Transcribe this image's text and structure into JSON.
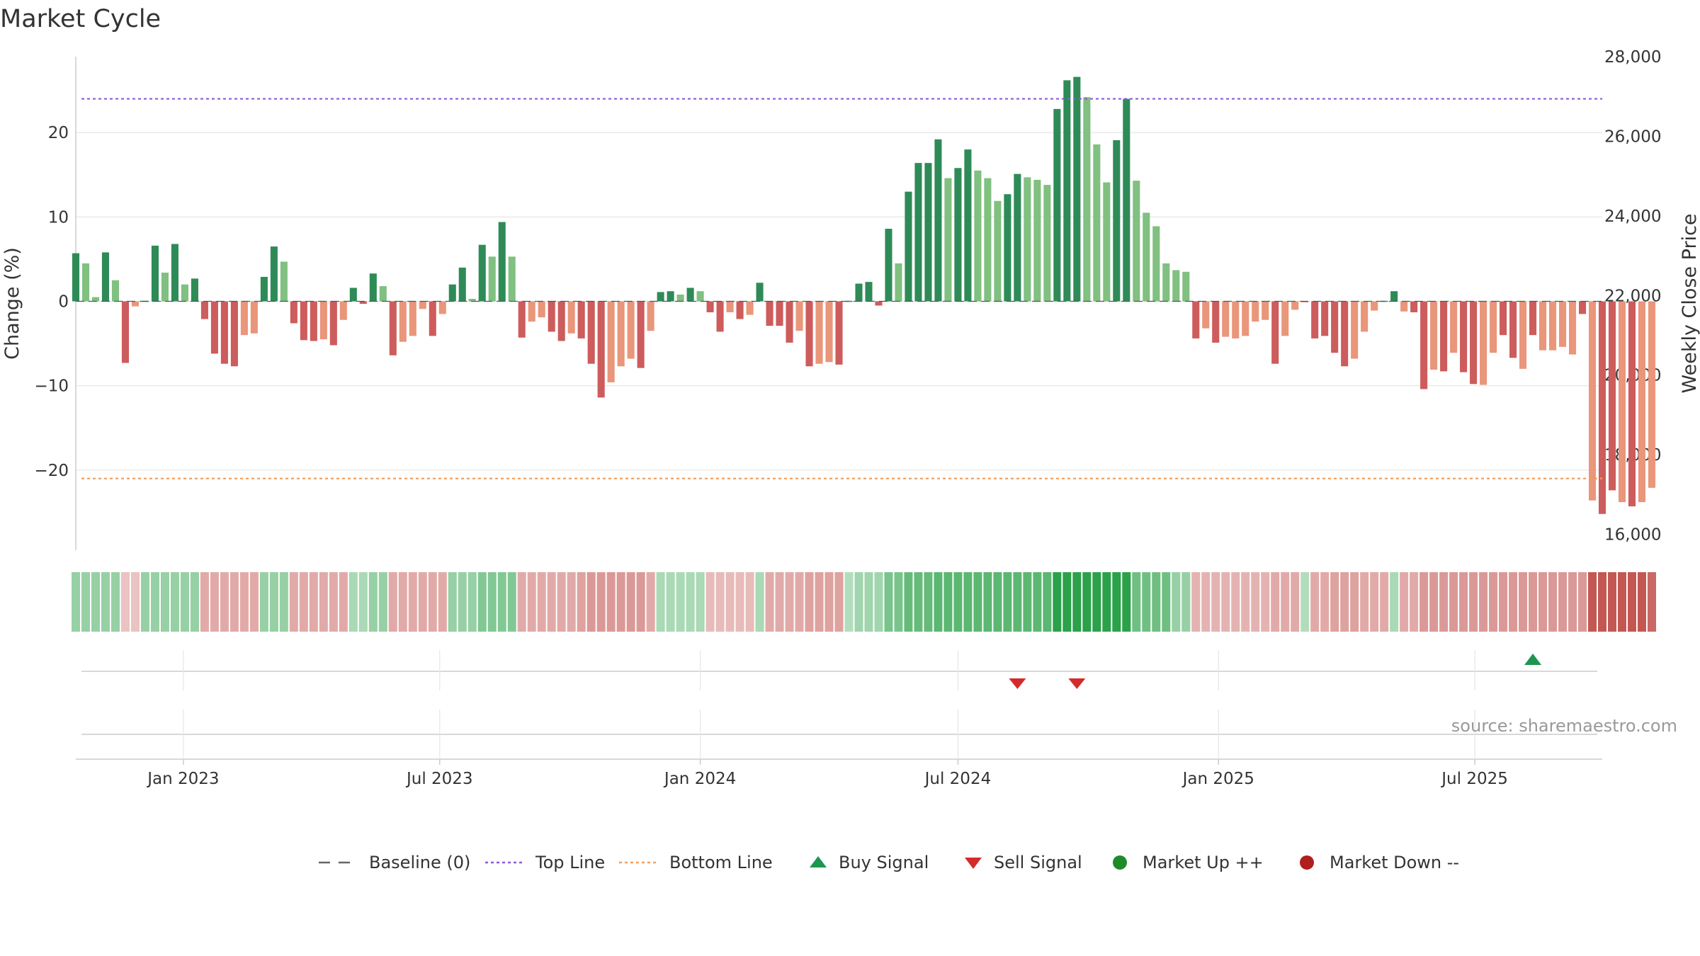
{
  "chart_data": {
    "type": "bar",
    "title": "Market Cycle",
    "ylabel": "Change (%)",
    "y2label": "Weekly Close Price",
    "ylim": [
      -29.5,
      29
    ],
    "yticks": [
      -20,
      -10,
      0,
      10,
      20
    ],
    "yticklabels": [
      "−20",
      "−10",
      "0",
      "10",
      "20"
    ],
    "y2lim": [
      15600,
      28000
    ],
    "y2ticks": [
      16000,
      18000,
      20000,
      22000,
      24000,
      26000,
      28000
    ],
    "y2ticklabels": [
      "16,000",
      "18,000",
      "20,000",
      "22,000",
      "24,000",
      "26,000",
      "28,000"
    ],
    "x_start": "2022-10-17",
    "x_end": "2025-09-29",
    "xticks": [
      "2023-01-01",
      "2023-07-01",
      "2024-01-01",
      "2024-07-01",
      "2025-01-01",
      "2025-07-01"
    ],
    "xticklabels": [
      "Jan 2023",
      "Jul 2023",
      "Jan 2024",
      "Jul 2024",
      "Jan 2025",
      "Jul 2025"
    ],
    "first_week": "2022-10-17",
    "values": [
      5.7,
      4.5,
      0.5,
      5.8,
      2.5,
      -7.3,
      -0.6,
      0,
      6.6,
      3.4,
      6.8,
      2.0,
      2.7,
      -2.1,
      -6.2,
      -7.4,
      -7.7,
      -4.0,
      -3.8,
      2.9,
      6.5,
      4.7,
      -2.6,
      -4.6,
      -4.7,
      -4.5,
      -5.2,
      -2.2,
      1.6,
      -0.3,
      3.3,
      1.8,
      -6.4,
      -4.8,
      -4.1,
      -0.9,
      -4.1,
      -1.5,
      2.0,
      4.0,
      0.3,
      6.7,
      5.3,
      9.4,
      5.3,
      -4.3,
      -2.4,
      -1.9,
      -3.6,
      -4.7,
      -3.8,
      -4.4,
      -7.4,
      -11.4,
      -9.6,
      -7.7,
      -6.8,
      -7.9,
      -3.5,
      1.1,
      1.2,
      0.8,
      1.6,
      1.2,
      -1.3,
      -3.6,
      -1.3,
      -2.1,
      -1.6,
      2.2,
      -2.9,
      -2.9,
      -4.9,
      -3.5,
      -7.7,
      -7.4,
      -7.2,
      -7.5,
      0,
      2.1,
      2.3,
      -0.5,
      8.6,
      4.5,
      13.0,
      16.4,
      16.4,
      19.2,
      14.6,
      15.8,
      18.0,
      15.5,
      14.6,
      11.9,
      12.7,
      15.1,
      14.7,
      14.4,
      13.8,
      22.8,
      26.2,
      26.6,
      24.2,
      18.6,
      14.1,
      19.1,
      24.0,
      14.3,
      10.5,
      8.9,
      4.5,
      3.7,
      3.5,
      -4.4,
      -3.2,
      -4.9,
      -4.2,
      -4.4,
      -4.1,
      -2.4,
      -2.2,
      -7.4,
      -4.1,
      -1.0,
      -0.1,
      -4.4,
      -4.1,
      -6.1,
      -7.7,
      -6.8,
      -3.6,
      -1.1,
      0,
      1.2,
      -1.2,
      -1.3,
      -10.4,
      -8.1,
      -8.3,
      -6.1,
      -8.4,
      -9.8,
      -9.9,
      -6.1,
      -4.0,
      -6.7,
      -8.0,
      -4.0,
      -5.8,
      -5.8,
      -5.4,
      -6.3,
      -1.5,
      -23.6,
      -25.2,
      -22.4,
      -23.8,
      -24.3,
      -23.8,
      -22.1
    ],
    "color_levels": [
      2,
      1,
      1,
      2,
      1,
      2,
      1,
      2,
      2,
      1,
      2,
      1,
      2,
      2,
      2,
      2,
      2,
      1,
      1,
      2,
      2,
      1,
      2,
      2,
      2,
      1,
      2,
      1,
      2,
      2,
      2,
      1,
      2,
      1,
      1,
      1,
      2,
      1,
      2,
      2,
      1,
      2,
      1,
      2,
      1,
      2,
      1,
      1,
      2,
      2,
      1,
      2,
      2,
      2,
      1,
      1,
      1,
      2,
      1,
      2,
      2,
      1,
      2,
      1,
      2,
      2,
      1,
      2,
      1,
      2,
      2,
      2,
      2,
      1,
      2,
      1,
      1,
      2,
      2,
      2,
      2,
      2,
      2,
      1,
      2,
      2,
      2,
      2,
      1,
      2,
      2,
      1,
      1,
      1,
      2,
      2,
      1,
      1,
      1,
      2,
      2,
      2,
      1,
      1,
      1,
      2,
      2,
      1,
      1,
      1,
      1,
      1,
      1,
      2,
      1,
      2,
      1,
      1,
      1,
      1,
      1,
      2,
      1,
      1,
      1,
      2,
      2,
      2,
      2,
      1,
      1,
      1,
      2,
      2,
      1,
      2,
      2,
      1,
      2,
      1,
      2,
      2,
      1,
      1,
      2,
      2,
      1,
      2,
      1,
      1,
      1,
      1,
      2,
      1,
      2,
      2,
      1,
      2,
      1,
      1,
      1
    ],
    "heat_levels": [
      0.3,
      0.3,
      0.3,
      0.3,
      0.3,
      -0.15,
      -0.15,
      0.3,
      0.3,
      0.3,
      0.3,
      0.3,
      0.3,
      -0.3,
      -0.3,
      -0.3,
      -0.3,
      -0.3,
      -0.3,
      0.3,
      0.3,
      0.3,
      -0.3,
      -0.3,
      -0.3,
      -0.3,
      -0.3,
      -0.3,
      0.2,
      0.2,
      0.3,
      0.3,
      -0.3,
      -0.3,
      -0.3,
      -0.3,
      -0.3,
      -0.3,
      0.3,
      0.3,
      0.3,
      0.4,
      0.4,
      0.4,
      0.4,
      -0.3,
      -0.3,
      -0.3,
      -0.3,
      -0.3,
      -0.3,
      -0.35,
      -0.4,
      -0.4,
      -0.4,
      -0.4,
      -0.4,
      -0.4,
      -0.3,
      0.2,
      0.2,
      0.2,
      0.2,
      0.2,
      -0.2,
      -0.2,
      -0.2,
      -0.2,
      -0.2,
      0.2,
      -0.3,
      -0.3,
      -0.3,
      -0.3,
      -0.35,
      -0.35,
      -0.35,
      -0.35,
      0.15,
      0.25,
      0.25,
      0.25,
      0.45,
      0.45,
      0.55,
      0.55,
      0.55,
      0.6,
      0.6,
      0.6,
      0.6,
      0.6,
      0.6,
      0.6,
      0.6,
      0.6,
      0.6,
      0.6,
      0.6,
      0.85,
      0.85,
      0.85,
      0.85,
      0.85,
      0.85,
      0.85,
      0.85,
      0.5,
      0.5,
      0.5,
      0.5,
      0.3,
      0.3,
      -0.25,
      -0.25,
      -0.25,
      -0.25,
      -0.25,
      -0.25,
      -0.25,
      -0.25,
      -0.3,
      -0.3,
      -0.3,
      0.15,
      -0.3,
      -0.3,
      -0.35,
      -0.35,
      -0.35,
      -0.3,
      -0.3,
      -0.3,
      0.2,
      -0.3,
      -0.3,
      -0.4,
      -0.4,
      -0.4,
      -0.4,
      -0.4,
      -0.4,
      -0.4,
      -0.4,
      -0.4,
      -0.4,
      -0.4,
      -0.4,
      -0.4,
      -0.4,
      -0.4,
      -0.4,
      -0.4,
      -0.8,
      -0.8,
      -0.8,
      -0.8,
      -0.8,
      -0.8,
      -0.7
    ],
    "price": [],
    "top_line": 24,
    "bottom_line": -21,
    "buy_signals": [
      "2025-08-11"
    ],
    "sell_signals": [
      "2024-08-12",
      "2024-09-23"
    ],
    "market_up_signals": [],
    "market_down_signals": [],
    "legend": [
      {
        "label": "Baseline (0)",
        "marker": "dash-line",
        "color": "#666666"
      },
      {
        "label": "Top Line",
        "marker": "dotted-line",
        "color": "#8e5ad6"
      },
      {
        "label": "Bottom Line",
        "marker": "dotted-line",
        "color": "#f0a060"
      },
      {
        "label": "Buy Signal",
        "marker": "triangle-up",
        "color": "#1e9650"
      },
      {
        "label": "Sell Signal",
        "marker": "triangle-down",
        "color": "#d42a2a"
      },
      {
        "label": "Market Up ++",
        "marker": "circle",
        "color": "#1f8a2a"
      },
      {
        "label": "Market Down --",
        "marker": "circle",
        "color": "#b01e1e"
      }
    ],
    "legend_position": "bottom-center",
    "grid": true,
    "source": "source: sharemaestro.com"
  },
  "colors": {
    "up_strong": "#2e8b57",
    "up_light": "#80c080",
    "down_strong": "#cd5c5c",
    "down_light": "#e9967a",
    "top_line": "#8e5ad6",
    "bottom_line": "#f0a060",
    "buy": "#1e9650",
    "sell": "#d42a2a",
    "grid": "#e6e6e6",
    "axis": "#cccccc"
  }
}
